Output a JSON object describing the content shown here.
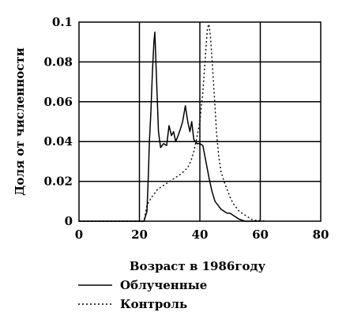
{
  "chart_data": {
    "type": "line",
    "title": "",
    "xlabel": "Возраст в 1986году",
    "ylabel": "Доля от численности",
    "xlim": [
      0,
      80
    ],
    "ylim": [
      0,
      0.1
    ],
    "x_ticks": [
      0,
      20,
      40,
      60,
      80
    ],
    "x_tick_labels": [
      "0",
      "20",
      "40",
      "60",
      "80"
    ],
    "y_ticks": [
      0,
      0.02,
      0.04,
      0.06,
      0.08,
      0.1
    ],
    "y_tick_labels": [
      "0",
      "0.02",
      "0.04",
      "0.06",
      "0.08",
      "0.1"
    ],
    "grid": true,
    "legend_position": "bottom-left",
    "series": [
      {
        "name": "Облученные",
        "style": "solid",
        "color": "#000000",
        "points": [
          [
            0,
            0
          ],
          [
            21.5,
            0
          ],
          [
            22.5,
            0.005
          ],
          [
            23.0,
            0.025
          ],
          [
            23.3,
            0.04
          ],
          [
            23.8,
            0.055
          ],
          [
            24.3,
            0.075
          ],
          [
            24.8,
            0.09
          ],
          [
            25.1,
            0.095
          ],
          [
            25.7,
            0.07
          ],
          [
            26.3,
            0.045
          ],
          [
            27,
            0.037
          ],
          [
            28,
            0.039
          ],
          [
            29,
            0.038
          ],
          [
            29.8,
            0.048
          ],
          [
            30.6,
            0.043
          ],
          [
            31.3,
            0.045
          ],
          [
            32,
            0.04
          ],
          [
            32.8,
            0.043
          ],
          [
            33.5,
            0.046
          ],
          [
            34.3,
            0.05
          ],
          [
            35.2,
            0.058
          ],
          [
            36,
            0.05
          ],
          [
            36.7,
            0.045
          ],
          [
            37.3,
            0.05
          ],
          [
            38,
            0.041
          ],
          [
            39,
            0.039
          ],
          [
            40,
            0.039
          ],
          [
            41,
            0.038
          ],
          [
            42,
            0.03
          ],
          [
            43,
            0.022
          ],
          [
            44,
            0.015
          ],
          [
            45,
            0.01
          ],
          [
            46,
            0.008
          ],
          [
            47,
            0.006
          ],
          [
            48,
            0.005
          ],
          [
            49,
            0.004
          ],
          [
            50,
            0.004
          ],
          [
            51,
            0.003
          ],
          [
            52,
            0.002
          ],
          [
            53,
            0.001
          ],
          [
            54,
            0.0005
          ],
          [
            55,
            0
          ],
          [
            60,
            0
          ]
        ]
      },
      {
        "name": "Контроль",
        "style": "dotted",
        "color": "#000000",
        "points": [
          [
            0,
            0
          ],
          [
            21.5,
            0
          ],
          [
            22.5,
            0.008
          ],
          [
            24,
            0.012
          ],
          [
            26,
            0.016
          ],
          [
            28,
            0.018
          ],
          [
            30,
            0.02
          ],
          [
            32,
            0.022
          ],
          [
            34,
            0.024
          ],
          [
            36,
            0.027
          ],
          [
            37,
            0.03
          ],
          [
            38,
            0.035
          ],
          [
            39,
            0.042
          ],
          [
            40,
            0.05
          ],
          [
            41,
            0.065
          ],
          [
            41.8,
            0.082
          ],
          [
            42.5,
            0.097
          ],
          [
            43,
            0.099
          ],
          [
            43.5,
            0.093
          ],
          [
            44,
            0.082
          ],
          [
            44.5,
            0.07
          ],
          [
            45,
            0.058
          ],
          [
            45.5,
            0.045
          ],
          [
            46.2,
            0.033
          ],
          [
            47,
            0.025
          ],
          [
            48,
            0.02
          ],
          [
            49,
            0.016
          ],
          [
            50,
            0.012
          ],
          [
            51,
            0.009
          ],
          [
            52,
            0.007
          ],
          [
            53,
            0.005
          ],
          [
            54,
            0.004
          ],
          [
            55,
            0.003
          ],
          [
            56,
            0.002
          ],
          [
            57,
            0.001
          ],
          [
            58,
            0.0005
          ],
          [
            60,
            0.0003
          ],
          [
            62,
            0
          ]
        ]
      }
    ]
  }
}
